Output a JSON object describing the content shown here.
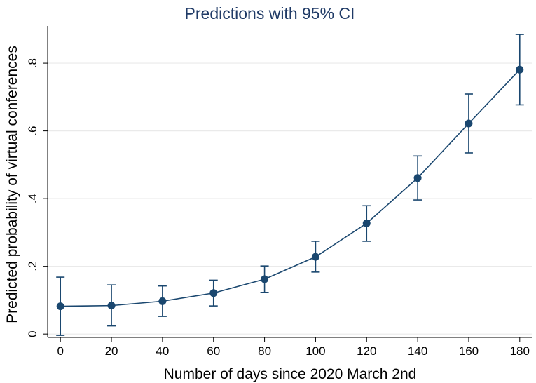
{
  "chart_data": {
    "type": "line",
    "title": "Predictions with 95% CI",
    "xlabel": "Number of days since 2020 March 2nd",
    "ylabel": "Predicted probability of virtual conferences",
    "x": [
      0,
      20,
      40,
      60,
      80,
      100,
      120,
      140,
      160,
      180
    ],
    "series": [
      {
        "values": [
          0.082,
          0.084,
          0.097,
          0.121,
          0.162,
          0.228,
          0.327,
          0.461,
          0.622,
          0.781
        ],
        "ci_lower": [
          -0.004,
          0.024,
          0.052,
          0.083,
          0.123,
          0.183,
          0.274,
          0.396,
          0.535,
          0.677
        ],
        "ci_upper": [
          0.168,
          0.145,
          0.142,
          0.159,
          0.201,
          0.274,
          0.379,
          0.526,
          0.709,
          0.885
        ]
      }
    ],
    "xticks": [
      0,
      20,
      40,
      60,
      80,
      100,
      120,
      140,
      160,
      180
    ],
    "xtick_labels": [
      "0",
      "20",
      "40",
      "60",
      "80",
      "100",
      "120",
      "140",
      "160",
      "180"
    ],
    "yticks": [
      0,
      0.2,
      0.4,
      0.6,
      0.8
    ],
    "ytick_labels": [
      "0",
      ".2",
      ".4",
      ".6",
      ".8"
    ],
    "xlim": [
      -5,
      185
    ],
    "ylim": [
      -0.01,
      0.91
    ],
    "grid": true,
    "colors": {
      "series": "#1a476f",
      "title": "#1f3a66",
      "grid": "#eaeaea",
      "axis": "#000000"
    }
  }
}
